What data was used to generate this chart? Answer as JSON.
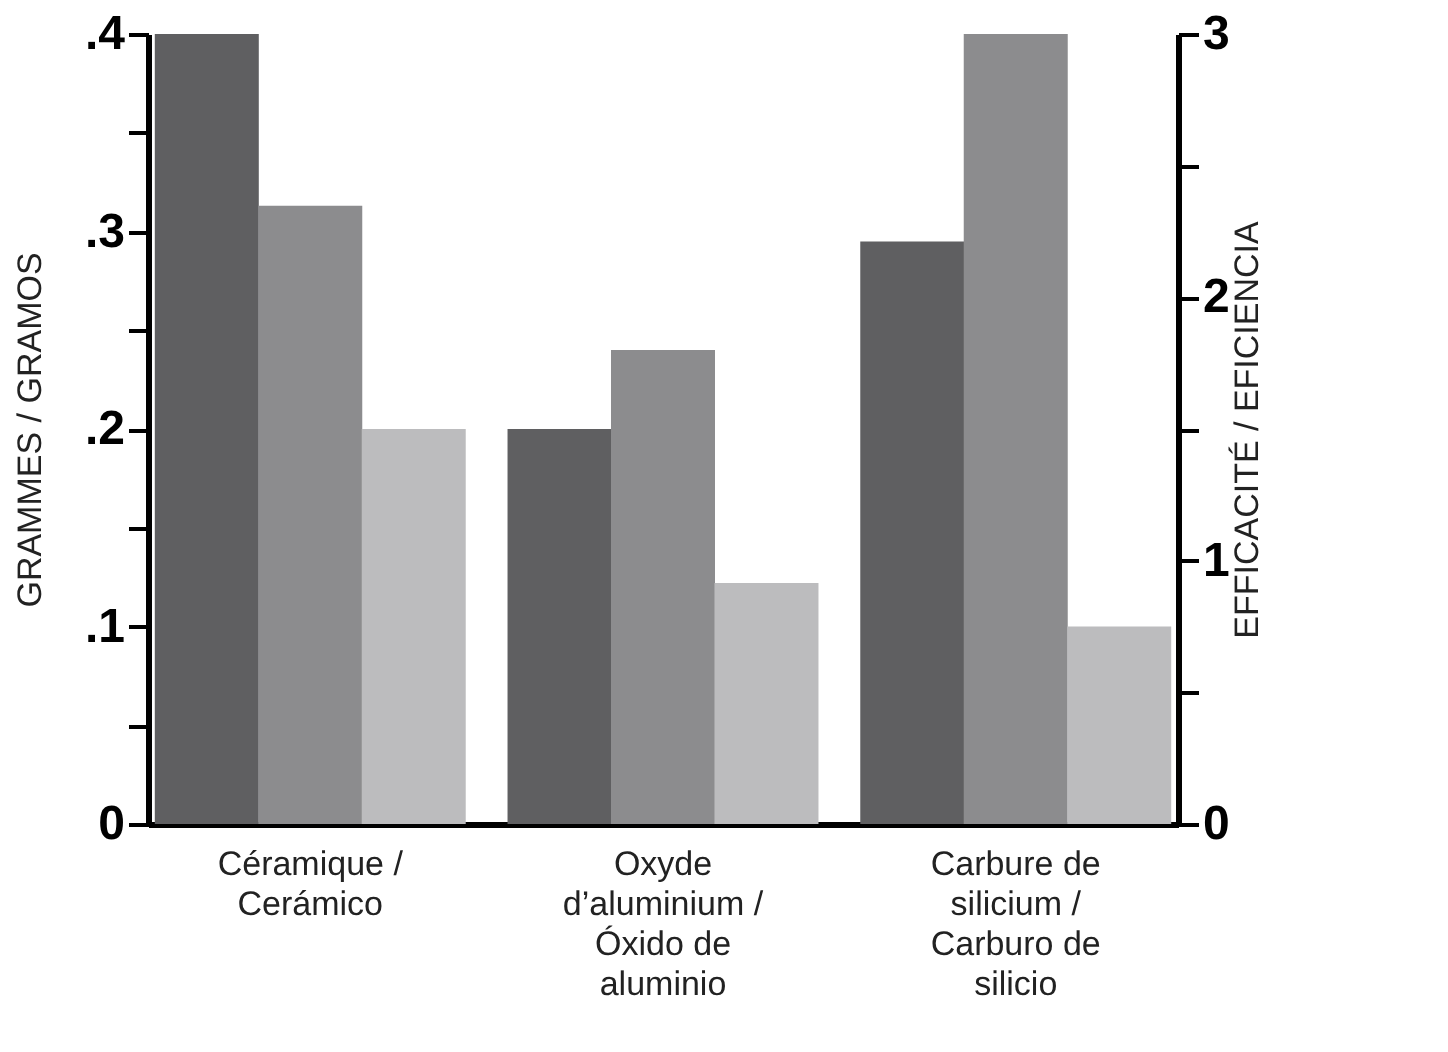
{
  "chart_data": {
    "type": "bar",
    "ylabel": "GRAMMES / GRAMOS",
    "y2label": "EFFICACITÉ / EFICIENCIA",
    "categories": [
      "Céramique / Cerámico",
      "Oxyde d’aluminium / Óxido de aluminio",
      "Carbure de silicium / Carburo de silicio"
    ],
    "series": [
      {
        "color": "#5f5f61",
        "values": [
          0.4,
          0.2,
          0.295
        ]
      },
      {
        "color": "#8c8c8e",
        "values": [
          0.313,
          0.24,
          0.4
        ]
      },
      {
        "color": "#bcbcbe",
        "values": [
          0.2,
          0.122,
          0.1
        ]
      }
    ],
    "ylim": [
      0,
      0.4
    ],
    "yticks": [
      0,
      {
        "value": 0.05,
        "label": null
      },
      {
        "value": 0.1,
        "label": ".1"
      },
      {
        "value": 0.15,
        "label": null
      },
      {
        "value": 0.2,
        "label": ".2"
      },
      {
        "value": 0.25,
        "label": null
      },
      {
        "value": 0.3,
        "label": ".3"
      },
      {
        "value": 0.35,
        "label": null
      },
      {
        "value": 0.4,
        "label": ".4"
      }
    ],
    "y2lim": [
      0,
      3
    ],
    "y2ticks": [
      0,
      {
        "value": 0.5,
        "label": null
      },
      1,
      {
        "value": 1.5,
        "label": null
      },
      2,
      {
        "value": 2.5,
        "label": null
      },
      3
    ],
    "grid": false,
    "legend": false
  }
}
